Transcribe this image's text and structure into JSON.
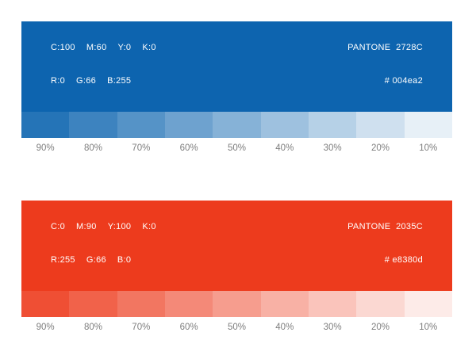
{
  "page": {
    "background": "#ffffff",
    "text_on_swatch_color": "#ffffff",
    "percent_label_color": "#7e7e7e"
  },
  "palettes": [
    {
      "id": "blue",
      "swatch_color": "#0d64af",
      "pantone": "PANTONE  2728C",
      "hex_label": "# 004ea2",
      "cmyk": {
        "c": "C:100",
        "m": "M:60",
        "y": "Y:0",
        "k": "K:0"
      },
      "rgb": {
        "r": "R:0",
        "g": "G:66",
        "b": "B:255"
      },
      "tints": [
        {
          "label": "90%",
          "color": "#2574b7"
        },
        {
          "label": "80%",
          "color": "#3d83bf"
        },
        {
          "label": "70%",
          "color": "#5593c7"
        },
        {
          "label": "60%",
          "color": "#6ea2cf"
        },
        {
          "label": "50%",
          "color": "#86b2d7"
        },
        {
          "label": "40%",
          "color": "#9ec1df"
        },
        {
          "label": "30%",
          "color": "#b6d1e7"
        },
        {
          "label": "20%",
          "color": "#cfe0ef"
        },
        {
          "label": "10%",
          "color": "#e7f0f7"
        }
      ]
    },
    {
      "id": "red",
      "swatch_color": "#ed3b1d",
      "pantone": "PANTONE  2035C",
      "hex_label": "# e8380d",
      "cmyk": {
        "c": "C:0",
        "m": "M:90",
        "y": "Y:100",
        "k": "K:0"
      },
      "rgb": {
        "r": "R:255",
        "g": "G:66",
        "b": "B:0"
      },
      "tints": [
        {
          "label": "90%",
          "color": "#ef4f34"
        },
        {
          "label": "80%",
          "color": "#f1624a"
        },
        {
          "label": "70%",
          "color": "#f27661"
        },
        {
          "label": "60%",
          "color": "#f48978"
        },
        {
          "label": "50%",
          "color": "#f69d8e"
        },
        {
          "label": "40%",
          "color": "#f8b1a5"
        },
        {
          "label": "30%",
          "color": "#fac4bb"
        },
        {
          "label": "20%",
          "color": "#fbd8d2"
        },
        {
          "label": "10%",
          "color": "#fdebe8"
        }
      ]
    }
  ]
}
